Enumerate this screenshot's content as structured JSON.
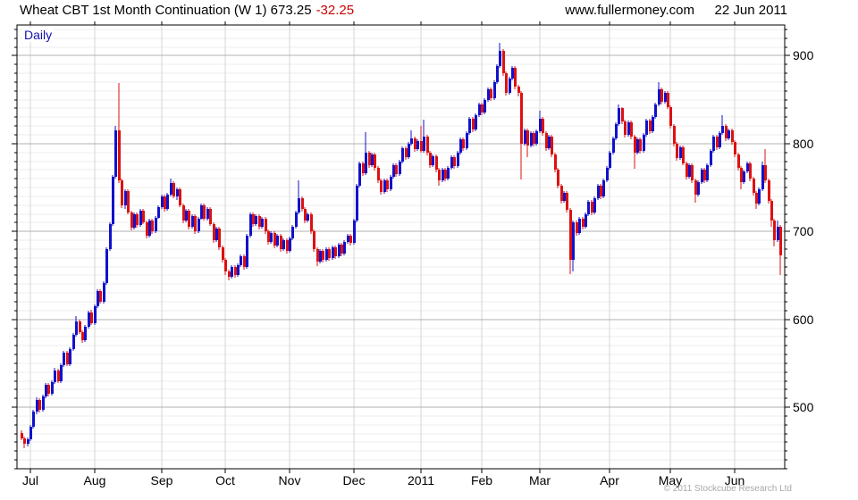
{
  "header": {
    "title_main": "Wheat CBT 1st Month Continuation (W 1) 673.25",
    "title_change": "-32.25",
    "website": "www.fullermoney.com",
    "date": "22 Jun 2011"
  },
  "chart_label": "Daily",
  "footer": {
    "copyright": "© 2011 Stockcube Research Ltd"
  },
  "colors": {
    "up_candle": "#1111cc",
    "down_candle": "#dd1111",
    "change_text": "#cc0000",
    "timeframe_text": "#1111aa",
    "grid_minor": "#ededed",
    "grid_major": "#b0b0b0",
    "grid_month": "#d6d6d6",
    "axis": "#000000",
    "tick_label": "#000000",
    "copyright_text": "#a8a8a8"
  },
  "chart_data": {
    "type": "candlestick",
    "title": "Wheat CBT 1st Month Continuation (W 1)",
    "timeframe": "Daily",
    "last_price": 673.25,
    "change": -32.25,
    "as_of": "22 Jun 2011",
    "ylim": [
      430,
      935
    ],
    "y_major_ticks": [
      500,
      600,
      700,
      800,
      900
    ],
    "y_minor_step": 10,
    "grid": true,
    "lead_in_days": 3,
    "months": [
      {
        "label": "Jul",
        "days": 21
      },
      {
        "label": "Aug",
        "days": 22
      },
      {
        "label": "Sep",
        "days": 21
      },
      {
        "label": "Oct",
        "days": 21
      },
      {
        "label": "Nov",
        "days": 21
      },
      {
        "label": "Dec",
        "days": 22
      },
      {
        "label": "2011",
        "days": 20
      },
      {
        "label": "Feb",
        "days": 19
      },
      {
        "label": "Mar",
        "days": 23
      },
      {
        "label": "Apr",
        "days": 20
      },
      {
        "label": "May",
        "days": 21
      },
      {
        "label": "Jun",
        "days": 16
      }
    ],
    "ohlc_format": [
      "open",
      "high",
      "low",
      "close"
    ],
    "candles": [
      [
        471,
        474,
        463,
        465
      ],
      [
        465,
        467,
        453,
        458
      ],
      [
        458,
        466,
        455,
        464
      ],
      [
        464,
        480,
        462,
        478
      ],
      [
        478,
        497,
        476,
        495
      ],
      [
        495,
        511,
        492,
        508
      ],
      [
        508,
        510,
        494,
        497
      ],
      [
        497,
        514,
        495,
        512
      ],
      [
        512,
        528,
        510,
        526
      ],
      [
        526,
        528,
        512,
        515
      ],
      [
        515,
        531,
        513,
        529
      ],
      [
        529,
        545,
        527,
        542
      ],
      [
        542,
        544,
        528,
        530
      ],
      [
        530,
        550,
        528,
        548
      ],
      [
        548,
        564,
        546,
        562
      ],
      [
        562,
        564,
        547,
        549
      ],
      [
        549,
        568,
        547,
        566
      ],
      [
        566,
        584,
        564,
        582
      ],
      [
        582,
        604,
        580,
        598
      ],
      [
        598,
        600,
        583,
        585
      ],
      [
        585,
        588,
        573,
        576
      ],
      [
        576,
        594,
        574,
        592
      ],
      [
        592,
        610,
        590,
        608
      ],
      [
        608,
        611,
        594,
        596
      ],
      [
        596,
        617,
        594,
        615
      ],
      [
        615,
        634,
        613,
        632
      ],
      [
        632,
        634,
        618,
        620
      ],
      [
        620,
        643,
        618,
        641
      ],
      [
        641,
        682,
        639,
        680
      ],
      [
        680,
        710,
        678,
        708
      ],
      [
        708,
        764,
        706,
        762
      ],
      [
        762,
        820,
        760,
        815
      ],
      [
        815,
        869,
        755,
        758
      ],
      [
        758,
        760,
        727,
        730
      ],
      [
        730,
        748,
        726,
        746
      ],
      [
        746,
        748,
        720,
        722
      ],
      [
        722,
        724,
        701,
        704
      ],
      [
        704,
        722,
        702,
        720
      ],
      [
        720,
        722,
        704,
        707
      ],
      [
        707,
        726,
        705,
        724
      ],
      [
        724,
        726,
        708,
        710
      ],
      [
        710,
        712,
        692,
        695
      ],
      [
        695,
        714,
        693,
        712
      ],
      [
        712,
        714,
        697,
        700
      ],
      [
        700,
        718,
        698,
        716
      ],
      [
        716,
        730,
        714,
        728
      ],
      [
        728,
        742,
        726,
        740
      ],
      [
        740,
        742,
        723,
        726
      ],
      [
        726,
        744,
        724,
        742
      ],
      [
        742,
        760,
        740,
        755
      ],
      [
        755,
        757,
        738,
        740
      ],
      [
        740,
        750,
        736,
        748
      ],
      [
        748,
        750,
        728,
        730
      ],
      [
        730,
        732,
        709,
        712
      ],
      [
        712,
        726,
        710,
        724
      ],
      [
        724,
        726,
        702,
        705
      ],
      [
        705,
        720,
        703,
        718
      ],
      [
        718,
        720,
        697,
        700
      ],
      [
        700,
        717,
        698,
        715
      ],
      [
        715,
        732,
        713,
        730
      ],
      [
        730,
        732,
        712,
        714
      ],
      [
        714,
        728,
        712,
        726
      ],
      [
        726,
        728,
        706,
        708
      ],
      [
        708,
        710,
        687,
        690
      ],
      [
        690,
        705,
        688,
        703
      ],
      [
        703,
        705,
        679,
        682
      ],
      [
        682,
        684,
        665,
        668
      ],
      [
        668,
        670,
        650,
        655
      ],
      [
        655,
        657,
        644,
        648
      ],
      [
        648,
        662,
        646,
        660
      ],
      [
        660,
        662,
        647,
        650
      ],
      [
        650,
        664,
        648,
        662
      ],
      [
        662,
        674,
        660,
        672
      ],
      [
        672,
        674,
        657,
        660
      ],
      [
        660,
        697,
        658,
        695
      ],
      [
        695,
        722,
        693,
        720
      ],
      [
        720,
        722,
        705,
        708
      ],
      [
        708,
        720,
        706,
        718
      ],
      [
        718,
        720,
        702,
        705
      ],
      [
        705,
        717,
        703,
        715
      ],
      [
        715,
        717,
        697,
        700
      ],
      [
        700,
        702,
        685,
        688
      ],
      [
        688,
        700,
        686,
        698
      ],
      [
        698,
        700,
        681,
        684
      ],
      [
        684,
        697,
        682,
        695
      ],
      [
        695,
        697,
        677,
        680
      ],
      [
        680,
        692,
        678,
        690
      ],
      [
        690,
        692,
        675,
        678
      ],
      [
        678,
        694,
        676,
        692
      ],
      [
        692,
        707,
        690,
        705
      ],
      [
        705,
        724,
        703,
        722
      ],
      [
        722,
        758,
        720,
        738
      ],
      [
        738,
        740,
        723,
        726
      ],
      [
        726,
        728,
        709,
        712
      ],
      [
        712,
        722,
        710,
        720
      ],
      [
        720,
        722,
        697,
        700
      ],
      [
        700,
        702,
        677,
        680
      ],
      [
        680,
        682,
        661,
        666
      ],
      [
        666,
        680,
        664,
        678
      ],
      [
        678,
        680,
        665,
        668
      ],
      [
        668,
        682,
        666,
        680
      ],
      [
        680,
        682,
        667,
        670
      ],
      [
        670,
        684,
        668,
        682
      ],
      [
        682,
        684,
        669,
        672
      ],
      [
        672,
        687,
        670,
        685
      ],
      [
        685,
        687,
        672,
        675
      ],
      [
        675,
        690,
        673,
        688
      ],
      [
        688,
        697,
        686,
        695
      ],
      [
        695,
        697,
        684,
        687
      ],
      [
        687,
        714,
        685,
        712
      ],
      [
        712,
        754,
        710,
        752
      ],
      [
        752,
        780,
        750,
        778
      ],
      [
        778,
        780,
        763,
        766
      ],
      [
        766,
        813,
        764,
        790
      ],
      [
        790,
        792,
        772,
        775
      ],
      [
        775,
        790,
        773,
        788
      ],
      [
        788,
        790,
        769,
        772
      ],
      [
        772,
        774,
        755,
        758
      ],
      [
        758,
        760,
        742,
        745
      ],
      [
        745,
        760,
        743,
        758
      ],
      [
        758,
        760,
        745,
        748
      ],
      [
        748,
        764,
        746,
        762
      ],
      [
        762,
        777,
        760,
        775
      ],
      [
        775,
        777,
        762,
        765
      ],
      [
        765,
        782,
        763,
        780
      ],
      [
        780,
        797,
        778,
        795
      ],
      [
        795,
        797,
        782,
        785
      ],
      [
        785,
        802,
        783,
        800
      ],
      [
        800,
        815,
        798,
        806
      ],
      [
        806,
        808,
        791,
        794
      ],
      [
        794,
        805,
        792,
        803
      ],
      [
        803,
        820,
        790,
        792
      ],
      [
        792,
        827,
        790,
        808
      ],
      [
        808,
        810,
        787,
        790
      ],
      [
        790,
        792,
        772,
        775
      ],
      [
        775,
        788,
        773,
        786
      ],
      [
        786,
        788,
        767,
        770
      ],
      [
        770,
        772,
        752,
        758
      ],
      [
        758,
        772,
        756,
        770
      ],
      [
        770,
        772,
        757,
        760
      ],
      [
        760,
        774,
        758,
        772
      ],
      [
        772,
        787,
        770,
        785
      ],
      [
        785,
        787,
        771,
        774
      ],
      [
        774,
        792,
        772,
        790
      ],
      [
        790,
        807,
        788,
        805
      ],
      [
        805,
        807,
        792,
        795
      ],
      [
        795,
        814,
        793,
        812
      ],
      [
        812,
        830,
        810,
        828
      ],
      [
        828,
        830,
        813,
        816
      ],
      [
        816,
        834,
        814,
        832
      ],
      [
        832,
        847,
        830,
        845
      ],
      [
        845,
        847,
        832,
        835
      ],
      [
        835,
        852,
        833,
        850
      ],
      [
        850,
        864,
        848,
        862
      ],
      [
        862,
        864,
        849,
        852
      ],
      [
        852,
        872,
        850,
        870
      ],
      [
        870,
        890,
        868,
        888
      ],
      [
        888,
        915,
        886,
        906
      ],
      [
        906,
        908,
        877,
        880
      ],
      [
        880,
        882,
        855,
        858
      ],
      [
        858,
        876,
        856,
        874
      ],
      [
        874,
        888,
        872,
        886
      ],
      [
        886,
        888,
        862,
        865
      ],
      [
        865,
        867,
        854,
        858
      ],
      [
        858,
        860,
        759,
        800
      ],
      [
        800,
        817,
        798,
        815
      ],
      [
        815,
        817,
        785,
        798
      ],
      [
        798,
        814,
        796,
        812
      ],
      [
        812,
        814,
        797,
        800
      ],
      [
        800,
        816,
        798,
        814
      ],
      [
        814,
        837,
        812,
        828
      ],
      [
        828,
        830,
        809,
        812
      ],
      [
        812,
        814,
        792,
        795
      ],
      [
        795,
        810,
        793,
        808
      ],
      [
        808,
        810,
        785,
        788
      ],
      [
        788,
        790,
        767,
        770
      ],
      [
        770,
        772,
        749,
        752
      ],
      [
        752,
        754,
        732,
        735
      ],
      [
        735,
        746,
        733,
        744
      ],
      [
        744,
        746,
        722,
        725
      ],
      [
        725,
        727,
        652,
        668
      ],
      [
        668,
        712,
        655,
        710
      ],
      [
        710,
        712,
        695,
        698
      ],
      [
        698,
        717,
        696,
        715
      ],
      [
        715,
        717,
        702,
        705
      ],
      [
        705,
        722,
        703,
        720
      ],
      [
        720,
        736,
        718,
        734
      ],
      [
        734,
        736,
        719,
        722
      ],
      [
        722,
        740,
        720,
        738
      ],
      [
        738,
        754,
        736,
        752
      ],
      [
        752,
        754,
        737,
        740
      ],
      [
        740,
        760,
        738,
        758
      ],
      [
        758,
        774,
        756,
        772
      ],
      [
        772,
        792,
        770,
        790
      ],
      [
        790,
        808,
        788,
        806
      ],
      [
        806,
        824,
        804,
        822
      ],
      [
        822,
        845,
        820,
        840
      ],
      [
        840,
        842,
        822,
        825
      ],
      [
        825,
        827,
        807,
        810
      ],
      [
        810,
        826,
        808,
        824
      ],
      [
        824,
        826,
        805,
        808
      ],
      [
        808,
        810,
        771,
        790
      ],
      [
        790,
        807,
        788,
        805
      ],
      [
        805,
        807,
        789,
        792
      ],
      [
        792,
        812,
        790,
        810
      ],
      [
        810,
        828,
        808,
        826
      ],
      [
        826,
        828,
        811,
        814
      ],
      [
        814,
        832,
        812,
        830
      ],
      [
        830,
        847,
        828,
        845
      ],
      [
        845,
        870,
        843,
        862
      ],
      [
        862,
        864,
        845,
        848
      ],
      [
        848,
        860,
        846,
        858
      ],
      [
        858,
        860,
        839,
        842
      ],
      [
        842,
        844,
        817,
        820
      ],
      [
        820,
        822,
        797,
        800
      ],
      [
        800,
        802,
        781,
        784
      ],
      [
        784,
        798,
        782,
        796
      ],
      [
        796,
        798,
        775,
        778
      ],
      [
        778,
        780,
        759,
        762
      ],
      [
        762,
        777,
        760,
        775
      ],
      [
        775,
        777,
        755,
        758
      ],
      [
        758,
        760,
        733,
        742
      ],
      [
        742,
        758,
        740,
        756
      ],
      [
        756,
        772,
        754,
        770
      ],
      [
        770,
        772,
        755,
        758
      ],
      [
        758,
        777,
        756,
        775
      ],
      [
        775,
        794,
        773,
        792
      ],
      [
        792,
        810,
        790,
        808
      ],
      [
        808,
        810,
        793,
        796
      ],
      [
        796,
        814,
        794,
        812
      ],
      [
        812,
        832,
        810,
        820
      ],
      [
        820,
        822,
        803,
        806
      ],
      [
        806,
        817,
        804,
        815
      ],
      [
        815,
        817,
        799,
        802
      ],
      [
        802,
        804,
        785,
        788
      ],
      [
        788,
        790,
        769,
        772
      ],
      [
        772,
        774,
        748,
        756
      ],
      [
        756,
        770,
        754,
        768
      ],
      [
        768,
        780,
        766,
        778
      ],
      [
        778,
        780,
        757,
        760
      ],
      [
        760,
        762,
        741,
        744
      ],
      [
        744,
        746,
        726,
        732
      ],
      [
        732,
        750,
        730,
        748
      ],
      [
        748,
        780,
        746,
        775
      ],
      [
        775,
        794,
        755,
        758
      ],
      [
        758,
        760,
        732,
        735
      ],
      [
        735,
        737,
        705,
        712
      ],
      [
        712,
        714,
        683,
        690
      ],
      [
        690,
        712,
        688,
        705.5
      ],
      [
        705.5,
        707,
        651,
        673.25
      ]
    ]
  }
}
